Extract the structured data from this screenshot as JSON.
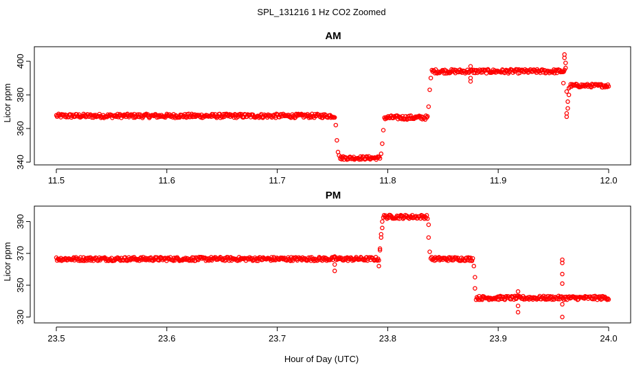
{
  "figure": {
    "title": "SPL_131216  1 Hz CO2 Zoomed",
    "xlabel": "Hour of Day (UTC)"
  },
  "colors": {
    "points": "#ff0000",
    "axes": "#000000",
    "background": "#ffffff"
  },
  "chart_data": [
    {
      "type": "scatter",
      "title": "AM",
      "xlabel": "",
      "ylabel": "Licor ppm",
      "xlim": [
        11.5,
        12.0
      ],
      "ylim": [
        340,
        407
      ],
      "xticks": [
        11.5,
        11.6,
        11.7,
        11.8,
        11.9,
        12.0
      ],
      "xtick_labels": [
        "11.5",
        "11.6",
        "11.7",
        "11.8",
        "11.9",
        "12.0"
      ],
      "yticks": [
        340,
        360,
        380,
        400
      ],
      "ytick_labels": [
        "340",
        "360",
        "380",
        "400"
      ],
      "marker": "open circle",
      "segments": [
        {
          "x_start": 11.5,
          "x_end": 11.752,
          "y": 367.5,
          "jitter": 1.2
        },
        {
          "x_start": 11.757,
          "x_end": 11.793,
          "y": 342.5,
          "jitter": 1.0
        },
        {
          "x_start": 11.797,
          "x_end": 11.836,
          "y": 366.5,
          "jitter": 1.2
        },
        {
          "x_start": 11.84,
          "x_end": 11.96,
          "y": 394.0,
          "jitter": 1.2
        },
        {
          "x_start": 11.965,
          "x_end": 12.0,
          "y": 385.5,
          "jitter": 1.0
        }
      ],
      "transition_points": [
        [
          11.753,
          362
        ],
        [
          11.754,
          353
        ],
        [
          11.755,
          346
        ],
        [
          11.756,
          344
        ],
        [
          11.794,
          345
        ],
        [
          11.795,
          351
        ],
        [
          11.796,
          359
        ],
        [
          11.837,
          373
        ],
        [
          11.838,
          383
        ],
        [
          11.839,
          390
        ],
        [
          11.875,
          390
        ],
        [
          11.875,
          388
        ],
        [
          11.875,
          397
        ],
        [
          11.959,
          387
        ],
        [
          11.96,
          402
        ],
        [
          11.96,
          404
        ],
        [
          11.961,
          399
        ],
        [
          11.961,
          396
        ],
        [
          11.962,
          382
        ],
        [
          11.963,
          376
        ],
        [
          11.963,
          372
        ],
        [
          11.962,
          369
        ],
        [
          11.962,
          367
        ],
        [
          11.964,
          380
        ],
        [
          11.964,
          384
        ]
      ]
    },
    {
      "type": "scatter",
      "title": "PM",
      "xlabel": "Hour of Day (UTC)",
      "ylabel": "Licor ppm",
      "xlim": [
        23.5,
        24.0
      ],
      "ylim": [
        328,
        398
      ],
      "xticks": [
        23.5,
        23.6,
        23.7,
        23.8,
        23.9,
        24.0
      ],
      "xtick_labels": [
        "23.5",
        "23.6",
        "23.7",
        "23.8",
        "23.9",
        "24.0"
      ],
      "yticks": [
        330,
        350,
        370,
        390
      ],
      "ytick_labels": [
        "330",
        "350",
        "370",
        "390"
      ],
      "marker": "open circle",
      "segments": [
        {
          "x_start": 23.5,
          "x_end": 23.792,
          "y": 366.5,
          "jitter": 1.2
        },
        {
          "x_start": 23.796,
          "x_end": 23.836,
          "y": 393.0,
          "jitter": 1.2
        },
        {
          "x_start": 23.839,
          "x_end": 23.877,
          "y": 366.5,
          "jitter": 1.2
        },
        {
          "x_start": 23.88,
          "x_end": 24.0,
          "y": 342.0,
          "jitter": 1.2
        }
      ],
      "transition_points": [
        [
          23.752,
          363
        ],
        [
          23.752,
          359
        ],
        [
          23.752,
          368
        ],
        [
          23.792,
          362
        ],
        [
          23.793,
          372
        ],
        [
          23.793,
          373
        ],
        [
          23.794,
          380
        ],
        [
          23.794,
          382
        ],
        [
          23.795,
          386
        ],
        [
          23.795,
          390
        ],
        [
          23.837,
          388
        ],
        [
          23.837,
          380
        ],
        [
          23.838,
          371
        ],
        [
          23.878,
          362
        ],
        [
          23.879,
          355
        ],
        [
          23.879,
          348
        ],
        [
          23.918,
          346
        ],
        [
          23.918,
          337
        ],
        [
          23.918,
          333
        ],
        [
          23.958,
          366
        ],
        [
          23.958,
          364
        ],
        [
          23.958,
          357
        ],
        [
          23.958,
          351
        ],
        [
          23.958,
          338
        ],
        [
          23.958,
          330
        ]
      ]
    }
  ]
}
